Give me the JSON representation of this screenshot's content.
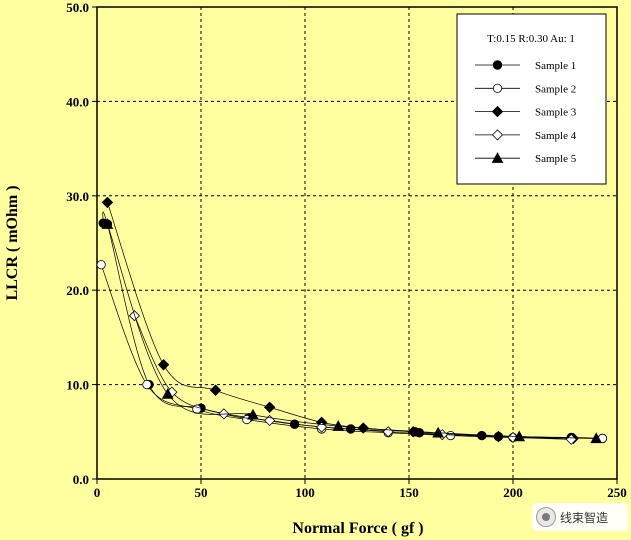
{
  "chart_data": {
    "type": "line",
    "xlabel": "Normal Force ( gf )",
    "ylabel": "LLCR ( mOhm )",
    "xlim": [
      0,
      250
    ],
    "ylim": [
      0,
      50
    ],
    "x_ticks": [
      "0",
      "50",
      "100",
      "150",
      "200",
      "250"
    ],
    "y_ticks": [
      "0.0",
      "10.0",
      "20.0",
      "30.0",
      "40.0",
      "50.0"
    ],
    "grid": true,
    "legend_title": "T:0.15 R:0.30 Au: 1",
    "legend_position": "top-right",
    "series": [
      {
        "name": "Sample 1",
        "marker": "filled-circle",
        "x": [
          3,
          5,
          25,
          50,
          73,
          95,
          122,
          153,
          155,
          185,
          193,
          228,
          243
        ],
        "y": [
          27.1,
          27.0,
          10.0,
          7.5,
          6.5,
          5.8,
          5.3,
          5.0,
          4.9,
          4.6,
          4.5,
          4.4,
          4.3
        ]
      },
      {
        "name": "Sample 2",
        "marker": "open-circle",
        "x": [
          2,
          24,
          48,
          72,
          108,
          140,
          170,
          200,
          243
        ],
        "y": [
          22.7,
          10.0,
          7.4,
          6.3,
          5.3,
          4.9,
          4.6,
          4.4,
          4.3
        ]
      },
      {
        "name": "Sample 3",
        "marker": "filled-diamond",
        "x": [
          5,
          32,
          57,
          83,
          108,
          128,
          152,
          193,
          229
        ],
        "y": [
          29.3,
          12.1,
          9.4,
          7.6,
          6.0,
          5.4,
          5.0,
          4.5,
          4.3
        ]
      },
      {
        "name": "Sample 4",
        "marker": "open-diamond",
        "x": [
          18,
          36,
          61,
          83,
          108,
          140,
          166,
          200,
          228
        ],
        "y": [
          17.3,
          9.2,
          6.9,
          6.2,
          5.5,
          5.0,
          4.7,
          4.4,
          4.2
        ]
      },
      {
        "name": "Sample 5",
        "marker": "filled-triangle",
        "x": [
          5,
          34,
          75,
          116,
          164,
          203,
          240
        ],
        "y": [
          27.0,
          9.0,
          6.8,
          5.6,
          4.9,
          4.5,
          4.3
        ]
      }
    ]
  },
  "watermark": {
    "text": "线束智造"
  }
}
